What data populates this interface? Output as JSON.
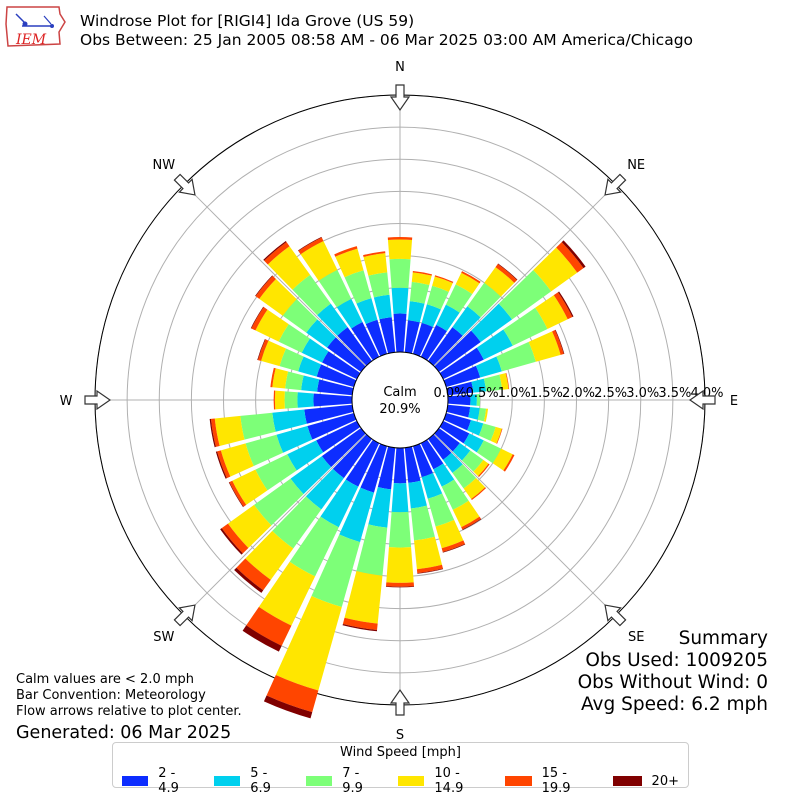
{
  "header": {
    "title_line1": "Windrose Plot for [RIGI4] Ida Grove (US 59)",
    "title_line2": "Obs Between: 25 Jan 2005 08:58 AM - 06 Mar 2025 03:00 AM America/Chicago"
  },
  "logo": {
    "text": "IEM"
  },
  "calm": {
    "label": "Calm",
    "value": "20.9%"
  },
  "summary": {
    "heading": "Summary",
    "obs_used": "Obs Used: 1009205",
    "obs_without_wind": "Obs Without Wind: 0",
    "avg_speed": "Avg Speed: 6.2 mph"
  },
  "notes": {
    "calm_note": "Calm values are < 2.0 mph",
    "bar_convention": "Bar Convention: Meteorology",
    "flow_note": "Flow arrows relative to plot center.",
    "generated": "Generated: 06 Mar 2025"
  },
  "chart_data": {
    "type": "bar",
    "polar": true,
    "title": "Windrose Plot for [RIGI4] Ida Grove (US 59)",
    "directions": [
      "N",
      "NE",
      "E",
      "SE",
      "S",
      "SW",
      "W",
      "NW"
    ],
    "radial_ticks": [
      "0.0%",
      "0.5%",
      "1.0%",
      "1.5%",
      "2.0%",
      "2.5%",
      "3.0%",
      "3.5%",
      "4.0%"
    ],
    "rmax": 4.0,
    "calm_percent": 20.9,
    "legend_title": "Wind Speed [mph]",
    "bins": [
      {
        "label": "2 - 4.9",
        "color": "#0d2dff"
      },
      {
        "label": "5 - 6.9",
        "color": "#00d0ee"
      },
      {
        "label": "7 - 9.9",
        "color": "#7dff78"
      },
      {
        "label": "10 - 14.9",
        "color": "#ffe600"
      },
      {
        "label": "15 - 19.9",
        "color": "#ff4500"
      },
      {
        "label": "20+",
        "color": "#800000"
      }
    ],
    "sectors": [
      {
        "dir": 0,
        "values": [
          0.6,
          0.4,
          0.45,
          0.3,
          0.04,
          0.0
        ]
      },
      {
        "dir": 10,
        "values": [
          0.5,
          0.3,
          0.3,
          0.15,
          0.02,
          0.0
        ]
      },
      {
        "dir": 20,
        "values": [
          0.5,
          0.3,
          0.3,
          0.15,
          0.02,
          0.0
        ]
      },
      {
        "dir": 30,
        "values": [
          0.55,
          0.35,
          0.35,
          0.2,
          0.03,
          0.0
        ]
      },
      {
        "dir": 40,
        "values": [
          0.65,
          0.4,
          0.45,
          0.3,
          0.06,
          0.01
        ]
      },
      {
        "dir": 50,
        "values": [
          0.8,
          0.6,
          0.75,
          0.5,
          0.12,
          0.04
        ]
      },
      {
        "dir": 60,
        "values": [
          0.7,
          0.5,
          0.6,
          0.35,
          0.08,
          0.02
        ]
      },
      {
        "dir": 70,
        "values": [
          0.55,
          0.35,
          0.55,
          0.4,
          0.05,
          0.01
        ]
      },
      {
        "dir": 80,
        "values": [
          0.4,
          0.2,
          0.25,
          0.1,
          0.01,
          0.0
        ]
      },
      {
        "dir": 90,
        "values": [
          0.35,
          0.1,
          0.05,
          0.0,
          0.0,
          0.0
        ]
      },
      {
        "dir": 100,
        "values": [
          0.35,
          0.15,
          0.1,
          0.03,
          0.0,
          0.0
        ]
      },
      {
        "dir": 110,
        "values": [
          0.4,
          0.2,
          0.2,
          0.1,
          0.01,
          0.0
        ]
      },
      {
        "dir": 120,
        "values": [
          0.45,
          0.25,
          0.3,
          0.2,
          0.03,
          0.0
        ]
      },
      {
        "dir": 130,
        "values": [
          0.4,
          0.2,
          0.25,
          0.1,
          0.02,
          0.0
        ]
      },
      {
        "dir": 140,
        "values": [
          0.4,
          0.25,
          0.3,
          0.2,
          0.02,
          0.0
        ]
      },
      {
        "dir": 150,
        "values": [
          0.45,
          0.3,
          0.4,
          0.3,
          0.04,
          0.01
        ]
      },
      {
        "dir": 160,
        "values": [
          0.5,
          0.35,
          0.45,
          0.35,
          0.06,
          0.01
        ]
      },
      {
        "dir": 170,
        "values": [
          0.55,
          0.4,
          0.5,
          0.45,
          0.06,
          0.01
        ]
      },
      {
        "dir": 180,
        "values": [
          0.55,
          0.45,
          0.55,
          0.55,
          0.06,
          0.01
        ]
      },
      {
        "dir": 190,
        "values": [
          0.65,
          0.6,
          0.75,
          0.75,
          0.1,
          0.02
        ]
      },
      {
        "dir": 200,
        "values": [
          0.75,
          0.8,
          1.05,
          1.35,
          0.35,
          0.1
        ]
      },
      {
        "dir": 210,
        "values": [
          0.75,
          0.7,
          0.85,
          0.85,
          0.35,
          0.1
        ]
      },
      {
        "dir": 220,
        "values": [
          0.75,
          0.6,
          0.75,
          0.6,
          0.2,
          0.05
        ]
      },
      {
        "dir": 230,
        "values": [
          0.75,
          0.6,
          0.7,
          0.5,
          0.12,
          0.03
        ]
      },
      {
        "dir": 240,
        "values": [
          0.7,
          0.5,
          0.55,
          0.4,
          0.05,
          0.01
        ]
      },
      {
        "dir": 250,
        "values": [
          0.75,
          0.5,
          0.5,
          0.4,
          0.06,
          0.02
        ]
      },
      {
        "dir": 260,
        "values": [
          0.75,
          0.5,
          0.5,
          0.4,
          0.06,
          0.02
        ]
      },
      {
        "dir": 270,
        "values": [
          0.6,
          0.25,
          0.2,
          0.15,
          0.02,
          0.0
        ]
      },
      {
        "dir": 280,
        "values": [
          0.55,
          0.25,
          0.25,
          0.2,
          0.03,
          0.0
        ]
      },
      {
        "dir": 290,
        "values": [
          0.6,
          0.3,
          0.3,
          0.3,
          0.05,
          0.01
        ]
      },
      {
        "dir": 300,
        "values": [
          0.6,
          0.35,
          0.4,
          0.4,
          0.07,
          0.01
        ]
      },
      {
        "dir": 310,
        "values": [
          0.65,
          0.4,
          0.45,
          0.45,
          0.07,
          0.01
        ]
      },
      {
        "dir": 320,
        "values": [
          0.65,
          0.45,
          0.55,
          0.55,
          0.08,
          0.02
        ]
      },
      {
        "dir": 330,
        "values": [
          0.6,
          0.4,
          0.5,
          0.5,
          0.06,
          0.01
        ]
      },
      {
        "dir": 340,
        "values": [
          0.55,
          0.35,
          0.45,
          0.35,
          0.04,
          0.0
        ]
      },
      {
        "dir": 350,
        "values": [
          0.55,
          0.35,
          0.35,
          0.3,
          0.03,
          0.0
        ]
      }
    ]
  }
}
